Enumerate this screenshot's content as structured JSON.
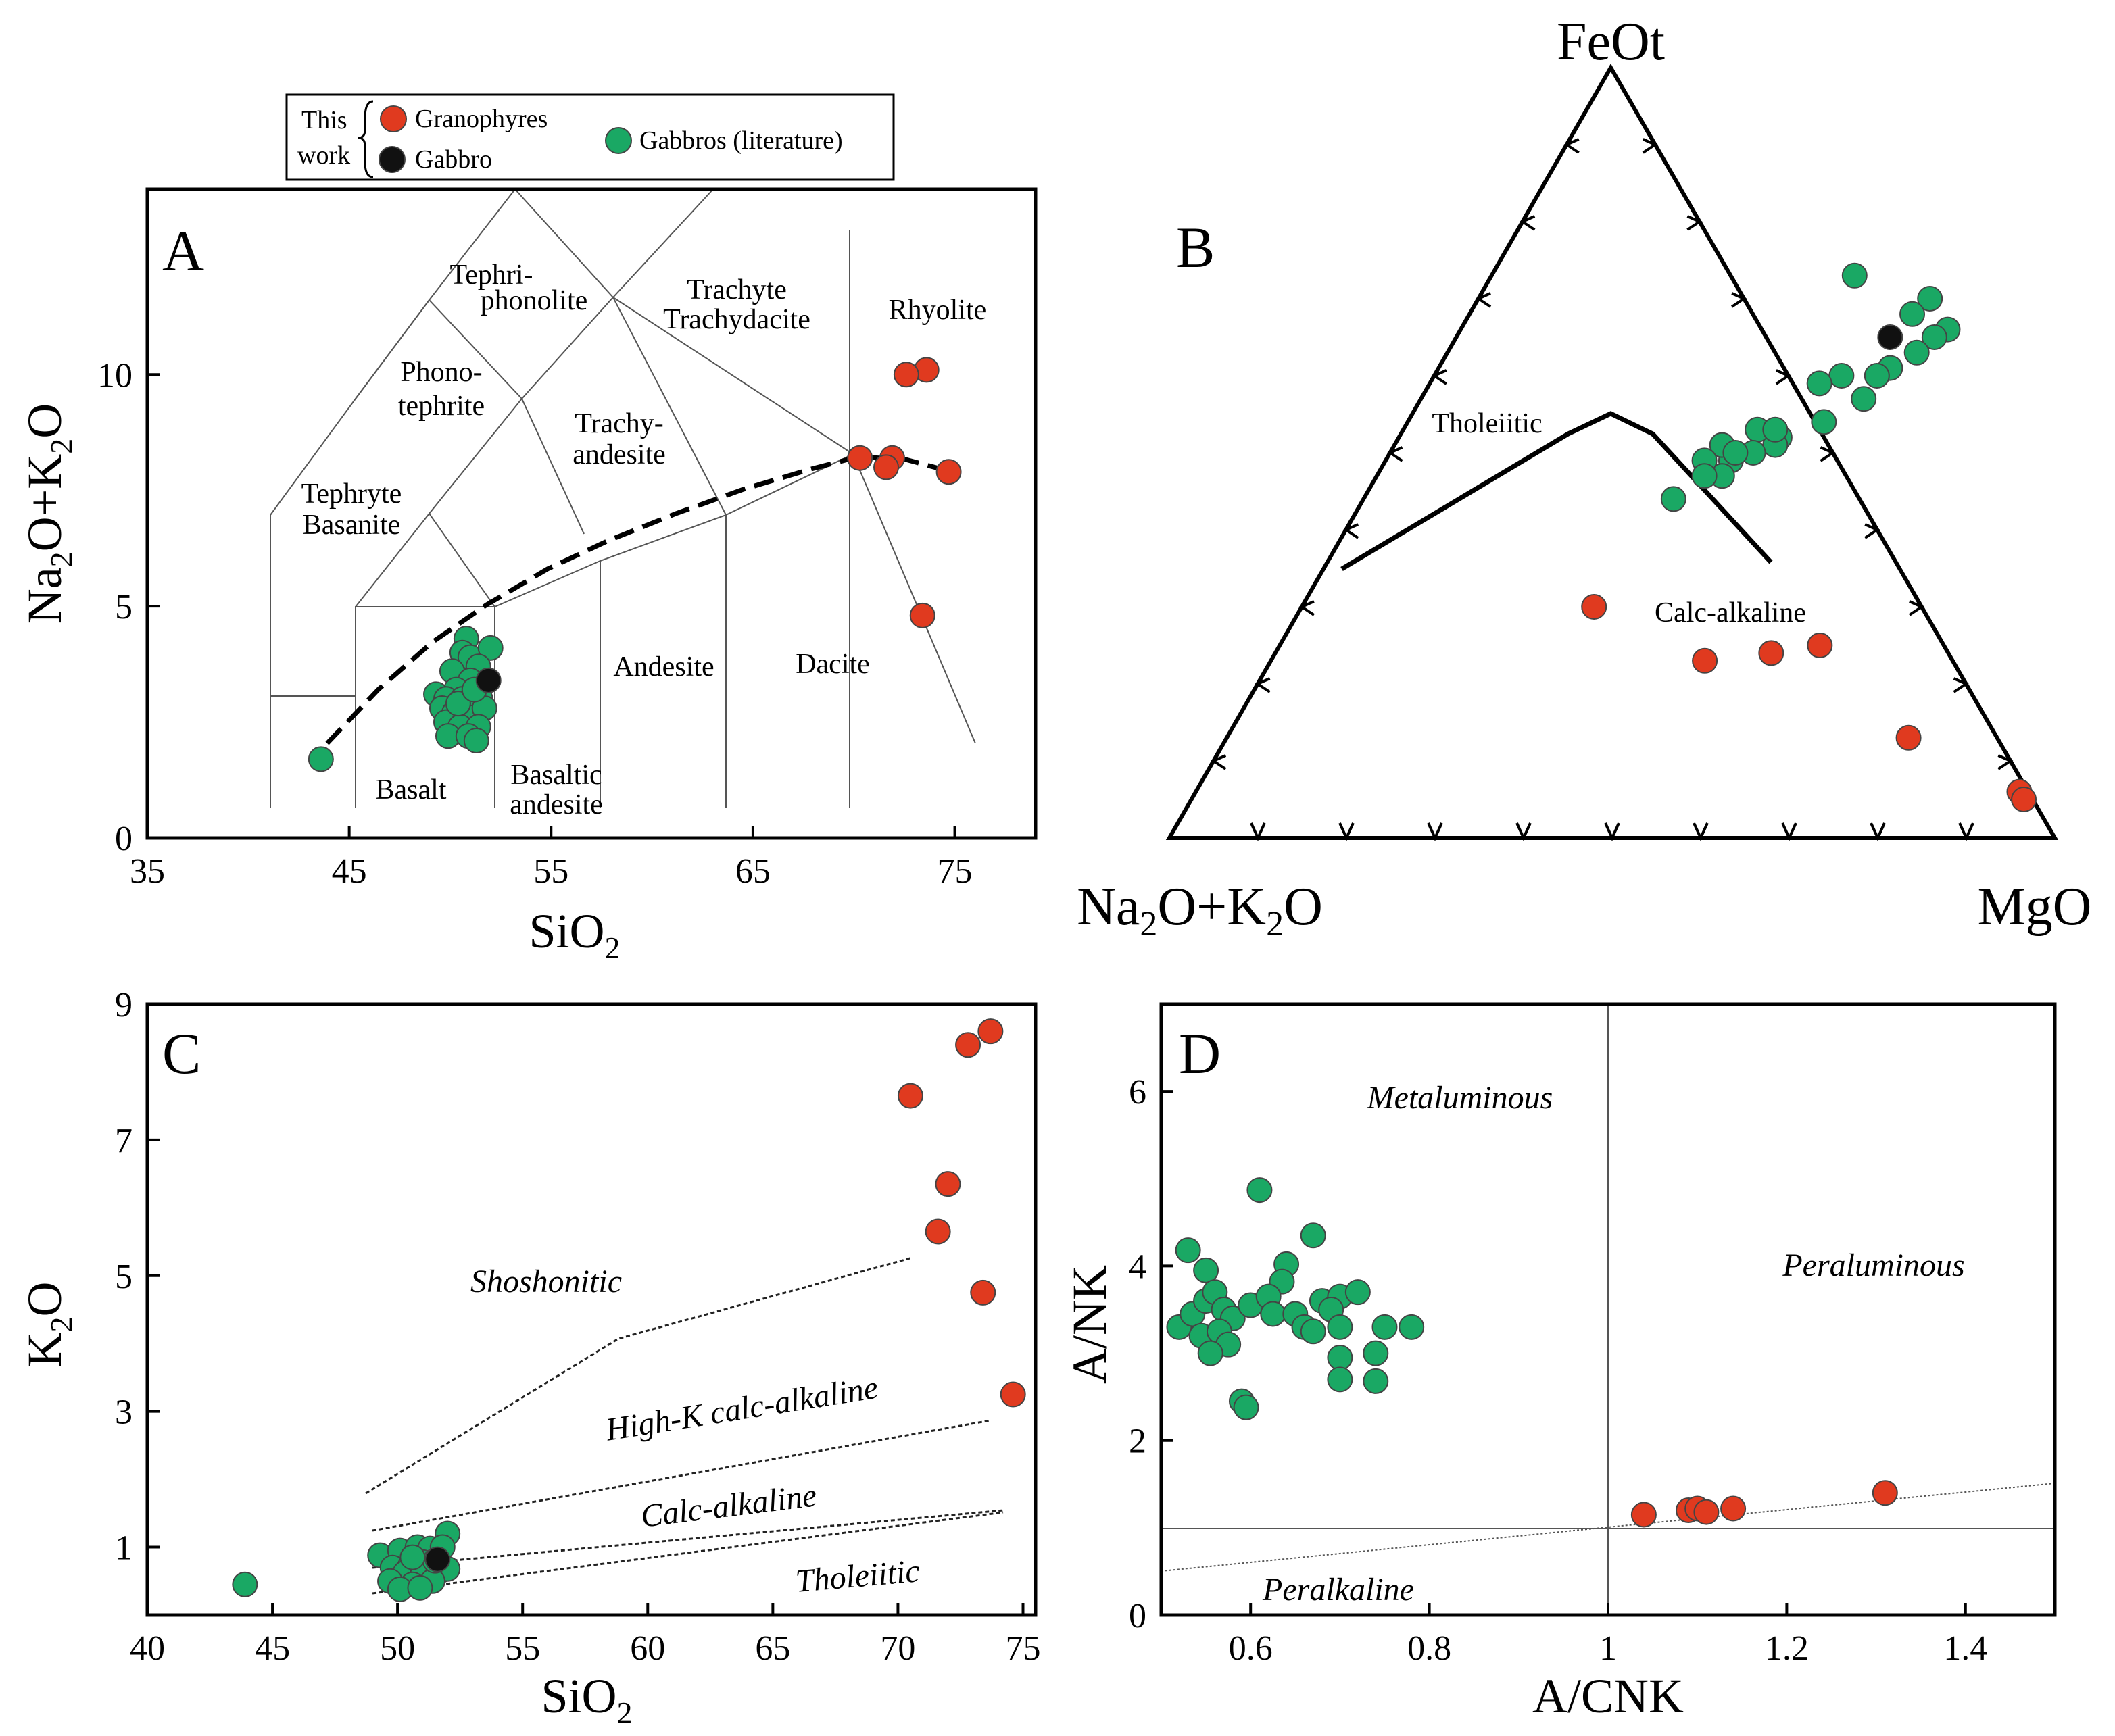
{
  "legend": {
    "this_work_line1": "This",
    "this_work_line2": "work",
    "granophyres": "Granophyres",
    "gabbro": "Gabbro",
    "gabbros_lit": "Gabbros (literature)"
  },
  "colors": {
    "granophyre": "#e03a1f",
    "gabbro": "#111111",
    "gabbro_lit": "#1aa864",
    "outline": "#444444"
  },
  "chart_data": [
    {
      "panel": "A",
      "type": "scatter",
      "xlabel": "SiO2",
      "ylabel": "Na2O+K2O",
      "xlim": [
        35,
        79
      ],
      "ylim": [
        0,
        14
      ],
      "xticks": [
        35,
        45,
        55,
        65,
        75
      ],
      "yticks": [
        0,
        5,
        10
      ],
      "fields": [
        "Tephri-",
        "phonolite",
        "Trachyte",
        "Trachydacite",
        "Rhyolite",
        "Phono-",
        "tephrite",
        "Trachy-",
        "andesite",
        "Tephryte",
        "Basanite",
        "Andesite",
        "Dacite",
        "Basalt",
        "Basaltic",
        "andesite"
      ],
      "series": [
        {
          "name": "Granophyres",
          "points": [
            [
              73.6,
              10.1
            ],
            [
              72.6,
              10.0
            ],
            [
              70.3,
              8.2
            ],
            [
              71.9,
              8.2
            ],
            [
              71.6,
              8.0
            ],
            [
              74.7,
              7.9
            ],
            [
              73.4,
              4.8
            ]
          ]
        },
        {
          "name": "Gabbro",
          "points": [
            [
              51.9,
              3.4
            ]
          ]
        },
        {
          "name": "Gabbros (literature)",
          "points": [
            [
              43.6,
              1.7
            ],
            [
              50.8,
              4.3
            ],
            [
              50.6,
              4.0
            ],
            [
              51.0,
              3.9
            ],
            [
              52.0,
              4.1
            ],
            [
              51.4,
              3.7
            ],
            [
              50.1,
              3.6
            ],
            [
              51.0,
              3.4
            ],
            [
              50.3,
              3.2
            ],
            [
              49.3,
              3.1
            ],
            [
              49.8,
              3.0
            ],
            [
              50.6,
              3.0
            ],
            [
              51.5,
              3.0
            ],
            [
              49.6,
              2.8
            ],
            [
              50.2,
              2.7
            ],
            [
              51.0,
              2.6
            ],
            [
              51.7,
              2.8
            ],
            [
              49.8,
              2.5
            ],
            [
              50.5,
              2.4
            ],
            [
              51.4,
              2.4
            ],
            [
              49.9,
              2.2
            ],
            [
              50.9,
              2.2
            ],
            [
              51.3,
              2.1
            ],
            [
              50.4,
              2.9
            ],
            [
              51.2,
              3.2
            ]
          ]
        }
      ]
    },
    {
      "panel": "B",
      "type": "scatter",
      "apex_top": "FeOt",
      "apex_left": "Na2O+K2O",
      "apex_right": "MgO",
      "fields": [
        "Tholeiitic",
        "Calc-alkaline"
      ],
      "series": [
        {
          "name": "Granophyres",
          "points": [
            [
              0.33,
              0.3
            ],
            [
              0.61,
              0.25
            ],
            [
              0.56,
              0.24
            ],
            [
              0.49,
              0.23
            ],
            [
              0.77,
              0.13
            ],
            [
              0.93,
              0.06
            ],
            [
              0.94,
              0.05
            ]
          ]
        },
        {
          "name": "Gabbro",
          "points": [
            [
              0.16,
              0.65
            ]
          ]
        },
        {
          "name": "Gabbros (literature)",
          "points": [
            [
              0.22,
              0.66
            ],
            [
              0.18,
              0.7
            ],
            [
              0.17,
              0.68
            ],
            [
              0.21,
              0.65
            ],
            [
              0.2,
              0.63
            ],
            [
              0.18,
              0.61
            ],
            [
              0.17,
              0.6
            ],
            [
              0.13,
              0.6
            ],
            [
              0.08,
              0.73
            ],
            [
              0.17,
              0.57
            ],
            [
              0.11,
              0.59
            ],
            [
              0.14,
              0.54
            ],
            [
              0.1,
              0.52
            ],
            [
              0.1,
              0.51
            ],
            [
              0.07,
              0.53
            ],
            [
              0.08,
              0.5
            ],
            [
              0.06,
              0.49
            ],
            [
              0.04,
              0.51
            ],
            [
              0.06,
              0.47
            ],
            [
              0.03,
              0.49
            ],
            [
              0.02,
              0.44
            ],
            [
              0.04,
              0.47
            ],
            [
              0.09,
              0.53
            ],
            [
              0.06,
              0.5
            ]
          ]
        }
      ]
    },
    {
      "panel": "C",
      "type": "scatter",
      "xlabel": "SiO2",
      "ylabel": "K2O",
      "xlim": [
        40,
        75.5
      ],
      "ylim": [
        0,
        9
      ],
      "xticks": [
        40,
        45,
        50,
        55,
        60,
        65,
        70,
        75
      ],
      "yticks": [
        1,
        3,
        5,
        7,
        9
      ],
      "fields": [
        "Shoshonitic",
        "High-K calc-alkaline",
        "Calc-alkaline",
        "Tholeiitic"
      ],
      "series": [
        {
          "name": "Granophyres",
          "points": [
            [
              73.7,
              8.6
            ],
            [
              72.8,
              8.4
            ],
            [
              70.5,
              7.65
            ],
            [
              72.0,
              6.35
            ],
            [
              71.6,
              5.65
            ],
            [
              73.4,
              4.75
            ],
            [
              74.6,
              3.25
            ]
          ]
        },
        {
          "name": "Gabbro",
          "points": [
            [
              51.6,
              0.82
            ]
          ]
        },
        {
          "name": "Gabbros (literature)",
          "points": [
            [
              43.9,
              0.45
            ],
            [
              49.3,
              0.88
            ],
            [
              50.1,
              0.95
            ],
            [
              50.8,
              1.0
            ],
            [
              51.3,
              0.98
            ],
            [
              52.0,
              1.2
            ],
            [
              51.8,
              1.0
            ],
            [
              49.8,
              0.7
            ],
            [
              50.5,
              0.72
            ],
            [
              51.0,
              0.78
            ],
            [
              50.3,
              0.62
            ],
            [
              51.0,
              0.6
            ],
            [
              51.7,
              0.65
            ],
            [
              52.0,
              0.68
            ],
            [
              49.7,
              0.5
            ],
            [
              50.6,
              0.45
            ],
            [
              51.4,
              0.5
            ],
            [
              50.1,
              0.38
            ],
            [
              50.9,
              0.4
            ],
            [
              51.5,
              0.8
            ],
            [
              50.6,
              0.85
            ]
          ]
        }
      ]
    },
    {
      "panel": "D",
      "type": "scatter",
      "xlabel": "A/CNK",
      "ylabel": "A/NK",
      "xlim": [
        0.5,
        1.5
      ],
      "ylim": [
        0,
        7
      ],
      "xticks": [
        0.6,
        0.8,
        1,
        1.2,
        1.4
      ],
      "yticks": [
        0,
        2,
        4,
        6
      ],
      "fields": [
        "Metaluminous",
        "Peraluminous",
        "Peralkaline"
      ],
      "series": [
        {
          "name": "Granophyres",
          "points": [
            [
              1.04,
              1.15
            ],
            [
              1.09,
              1.2
            ],
            [
              1.1,
              1.22
            ],
            [
              1.11,
              1.18
            ],
            [
              1.14,
              1.22
            ],
            [
              1.31,
              1.4
            ]
          ]
        },
        {
          "name": "Gabbros (literature)",
          "points": [
            [
              0.53,
              4.18
            ],
            [
              0.61,
              4.87
            ],
            [
              0.67,
              4.35
            ],
            [
              0.55,
              3.95
            ],
            [
              0.64,
              4.02
            ],
            [
              0.635,
              3.82
            ],
            [
              0.52,
              3.3
            ],
            [
              0.535,
              3.45
            ],
            [
              0.55,
              3.6
            ],
            [
              0.56,
              3.7
            ],
            [
              0.57,
              3.5
            ],
            [
              0.58,
              3.4
            ],
            [
              0.545,
              3.2
            ],
            [
              0.565,
              3.25
            ],
            [
              0.575,
              3.1
            ],
            [
              0.555,
              3.0
            ],
            [
              0.6,
              3.55
            ],
            [
              0.62,
              3.65
            ],
            [
              0.625,
              3.45
            ],
            [
              0.65,
              3.45
            ],
            [
              0.66,
              3.3
            ],
            [
              0.68,
              3.6
            ],
            [
              0.7,
              3.65
            ],
            [
              0.72,
              3.7
            ],
            [
              0.69,
              3.5
            ],
            [
              0.7,
              3.3
            ],
            [
              0.67,
              3.25
            ],
            [
              0.7,
              2.95
            ],
            [
              0.74,
              3.0
            ],
            [
              0.75,
              3.3
            ],
            [
              0.78,
              3.3
            ],
            [
              0.7,
              2.7
            ],
            [
              0.74,
              2.68
            ],
            [
              0.59,
              2.45
            ],
            [
              0.595,
              2.38
            ]
          ]
        }
      ]
    }
  ]
}
